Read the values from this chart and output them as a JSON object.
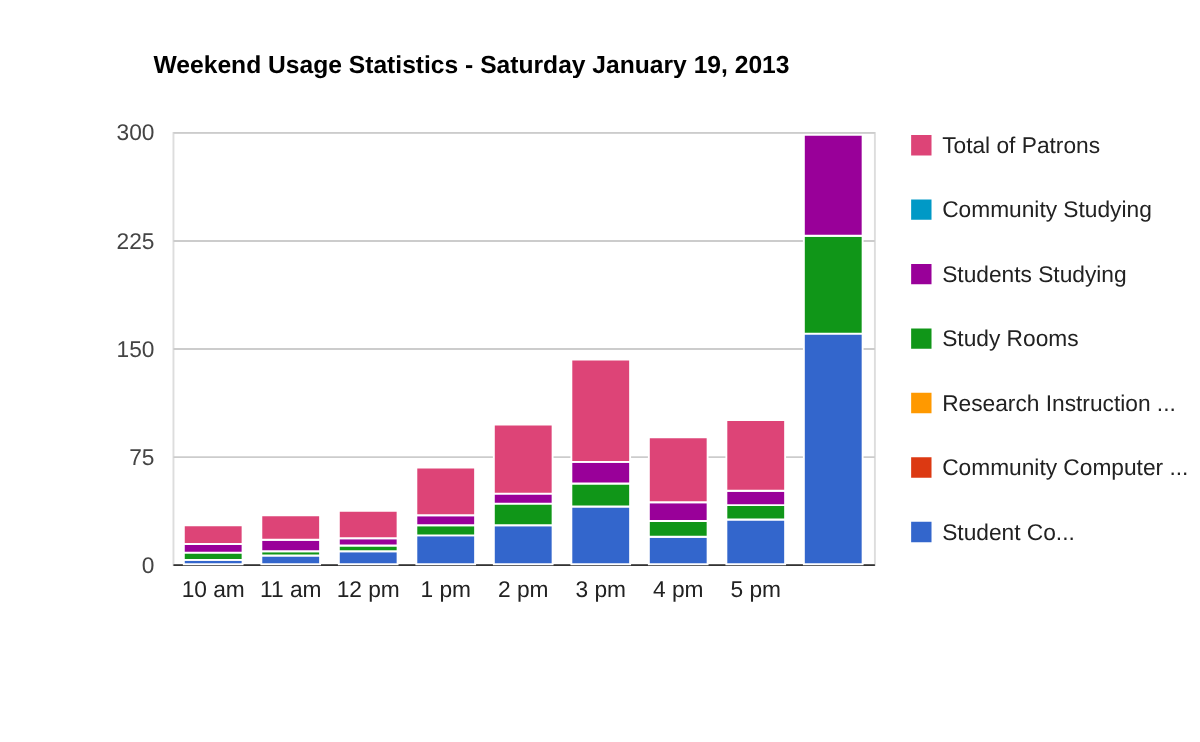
{
  "chart_data": {
    "type": "bar",
    "title": "Weekend Usage Statistics - Saturday January 19, 2013",
    "categories": [
      "10 am",
      "11 am",
      "12 pm",
      "1 pm",
      "2 pm",
      "3 pm",
      "4 pm",
      "5 pm",
      null
    ],
    "stacked": true,
    "series": [
      {
        "name": "Student Co...",
        "color": "#3366cc",
        "values": [
          3,
          6,
          9,
          20,
          27,
          40,
          19,
          31,
          160
        ]
      },
      {
        "name": "Community Computer ...",
        "color": "#dc3912",
        "values": [
          0,
          0,
          0,
          0,
          0,
          0,
          0,
          0,
          0
        ]
      },
      {
        "name": "Research Instruction ...",
        "color": "#ff9900",
        "values": [
          0,
          0,
          0,
          0,
          0,
          0,
          0,
          0,
          0
        ]
      },
      {
        "name": "Study Rooms",
        "color": "#109618",
        "values": [
          5,
          3,
          4,
          7,
          15,
          16,
          11,
          10,
          68
        ]
      },
      {
        "name": "Students Studying",
        "color": "#990099",
        "values": [
          6,
          8,
          5,
          7,
          7,
          15,
          13,
          10,
          70
        ]
      },
      {
        "name": "Community Studying",
        "color": "#0099c6",
        "values": [
          0,
          0,
          0,
          0,
          0,
          0,
          0,
          0,
          0
        ]
      },
      {
        "name": "Total of Patrons",
        "color": "#dd4477",
        "values": [
          13,
          17,
          19,
          33,
          48,
          71,
          45,
          49,
          0
        ]
      }
    ],
    "ylim": [
      0,
      300
    ],
    "yticks": [
      0,
      75,
      150,
      225,
      300
    ],
    "grid": "y",
    "legend": "right"
  }
}
